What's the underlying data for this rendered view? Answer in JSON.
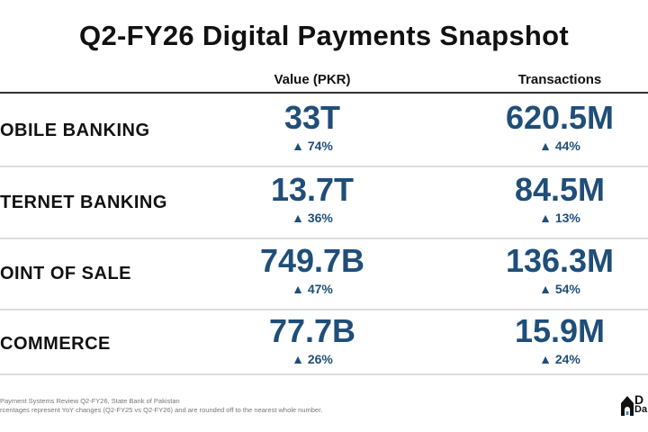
{
  "title": "Q2-FY26 Digital Payments Snapshot",
  "columns": {
    "value": "Value (PKR)",
    "transactions": "Transactions"
  },
  "rows": [
    {
      "label": "OBILE BANKING",
      "value": "33T",
      "value_change": "▲ 74%",
      "transactions": "620.5M",
      "transactions_change": "▲ 44%"
    },
    {
      "label": "TERNET BANKING",
      "value": "13.7T",
      "value_change": "▲ 36%",
      "transactions": "84.5M",
      "transactions_change": "▲ 13%"
    },
    {
      "label": "OINT OF SALE",
      "value": "749.7B",
      "value_change": "▲ 47%",
      "transactions": "136.3M",
      "transactions_change": "▲ 54%"
    },
    {
      "label": "COMMERCE",
      "value": "77.7B",
      "value_change": "▲ 26%",
      "transactions": "15.9M",
      "transactions_change": "▲ 24%"
    }
  ],
  "footer": {
    "source": "Payment Systems Review Q2-FY26, State Bank of Pakistan",
    "note": "rcentages represent YoY changes (Q2-FY25 vs Q2-FY26) and are rounded off to the nearest whole number."
  },
  "logo": {
    "text_top": "D",
    "text_bottom": "Da"
  },
  "colors": {
    "accent": "#1f4e79"
  }
}
